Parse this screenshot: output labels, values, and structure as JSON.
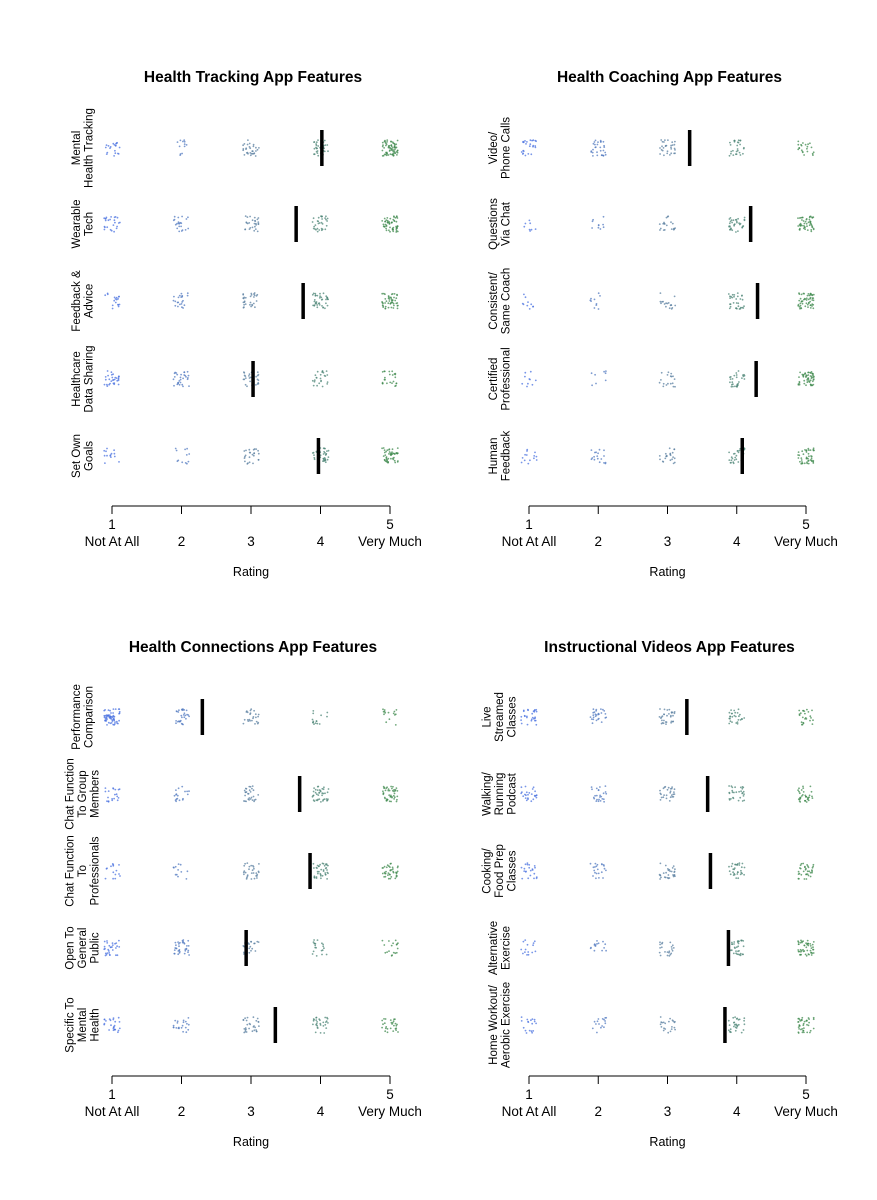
{
  "chart_data": [
    {
      "type": "scatter",
      "title": "Health Tracking App Features",
      "xlabel": "Rating",
      "xlim": [
        1,
        5
      ],
      "x_ticks": [
        1,
        2,
        3,
        4,
        5
      ],
      "x_tick_labels": [
        "1",
        "2",
        "3",
        "4",
        "5"
      ],
      "x_tick_sublabels": [
        "Not At All",
        "2",
        "3",
        "4",
        "Very Much"
      ],
      "rows": [
        {
          "label": [
            "Mental",
            "Health Tracking"
          ],
          "mean": 4.02,
          "counts": [
            20,
            12,
            30,
            35,
            70
          ]
        },
        {
          "label": [
            "Wearable",
            "Tech"
          ],
          "mean": 3.65,
          "counts": [
            25,
            22,
            28,
            32,
            55
          ]
        },
        {
          "label": [
            "Feedback &",
            "Advice"
          ],
          "mean": 3.75,
          "counts": [
            18,
            22,
            30,
            40,
            50
          ]
        },
        {
          "label": [
            "Healthcare",
            "Data Sharing"
          ],
          "mean": 3.03,
          "counts": [
            30,
            30,
            28,
            25,
            25
          ]
        },
        {
          "label": [
            "Set Own",
            "Goals"
          ],
          "mean": 3.97,
          "counts": [
            14,
            12,
            25,
            40,
            50
          ]
        }
      ]
    },
    {
      "type": "scatter",
      "title": "Health Coaching App Features",
      "xlabel": "Rating",
      "xlim": [
        1,
        5
      ],
      "x_ticks": [
        1,
        2,
        3,
        4,
        5
      ],
      "x_tick_labels": [
        "1",
        "2",
        "3",
        "4",
        "5"
      ],
      "x_tick_sublabels": [
        "Not At All",
        "2",
        "3",
        "4",
        "Very Much"
      ],
      "rows": [
        {
          "label": [
            "Video/",
            "Phone Calls"
          ],
          "mean": 3.32,
          "counts": [
            25,
            30,
            30,
            28,
            22
          ]
        },
        {
          "label": [
            "Questions",
            "Via Chat"
          ],
          "mean": 4.2,
          "counts": [
            8,
            10,
            20,
            35,
            50
          ]
        },
        {
          "label": [
            "Consistent/",
            "Same Coach"
          ],
          "mean": 4.3,
          "counts": [
            10,
            10,
            18,
            32,
            55
          ]
        },
        {
          "label": [
            "Certified",
            "Professional"
          ],
          "mean": 4.28,
          "counts": [
            10,
            8,
            18,
            30,
            55
          ]
        },
        {
          "label": [
            "Human",
            "Feedback"
          ],
          "mean": 4.08,
          "counts": [
            14,
            18,
            22,
            28,
            45
          ]
        }
      ]
    },
    {
      "type": "scatter",
      "title": "Health Connections App Features",
      "xlabel": "Rating",
      "xlim": [
        1,
        5
      ],
      "x_ticks": [
        1,
        2,
        3,
        4,
        5
      ],
      "x_tick_labels": [
        "1",
        "2",
        "3",
        "4",
        "5"
      ],
      "x_tick_sublabels": [
        "Not At All",
        "2",
        "3",
        "4",
        "Very Much"
      ],
      "rows": [
        {
          "label": [
            "Performance",
            "Comparison"
          ],
          "mean": 2.3,
          "counts": [
            60,
            30,
            25,
            15,
            15
          ]
        },
        {
          "label": [
            "Chat Function",
            "To Group",
            "Members"
          ],
          "mean": 3.7,
          "counts": [
            20,
            18,
            30,
            40,
            45
          ]
        },
        {
          "label": [
            "Chat Function",
            "To",
            "Professionals"
          ],
          "mean": 3.85,
          "counts": [
            15,
            12,
            30,
            40,
            40
          ]
        },
        {
          "label": [
            "Open To",
            "General",
            "Public"
          ],
          "mean": 2.93,
          "counts": [
            30,
            35,
            25,
            20,
            18
          ]
        },
        {
          "label": [
            "Specific To",
            "Mental",
            "Health"
          ],
          "mean": 3.35,
          "counts": [
            25,
            22,
            30,
            30,
            28
          ]
        }
      ]
    },
    {
      "type": "scatter",
      "title": "Instructional Videos App Features",
      "xlabel": "Rating",
      "xlim": [
        1,
        5
      ],
      "x_ticks": [
        1,
        2,
        3,
        4,
        5
      ],
      "x_tick_labels": [
        "1",
        "2",
        "3",
        "4",
        "5"
      ],
      "x_tick_sublabels": [
        "Not At All",
        "2",
        "3",
        "4",
        "Very Much"
      ],
      "rows": [
        {
          "label": [
            "Live",
            "Streamed",
            "Classes"
          ],
          "mean": 3.28,
          "counts": [
            28,
            28,
            32,
            28,
            25
          ]
        },
        {
          "label": [
            "Walking/",
            "Running",
            "Podcast"
          ],
          "mean": 3.58,
          "counts": [
            25,
            25,
            28,
            30,
            35
          ]
        },
        {
          "label": [
            "Cooking/",
            "Food Prep",
            "Classes"
          ],
          "mean": 3.62,
          "counts": [
            22,
            22,
            30,
            32,
            35
          ]
        },
        {
          "label": [
            "Alternative",
            "Exercise"
          ],
          "mean": 3.88,
          "counts": [
            15,
            15,
            22,
            35,
            50
          ]
        },
        {
          "label": [
            "Home Workout/",
            "Aerobic Exercise"
          ],
          "mean": 3.83,
          "counts": [
            18,
            16,
            22,
            30,
            40
          ]
        }
      ]
    }
  ],
  "colors": {
    "low": "#4a72e0",
    "mid": "#5a7fa0",
    "high": "#3f8a4e",
    "mean_bar": "#000000",
    "axis": "#000000"
  }
}
